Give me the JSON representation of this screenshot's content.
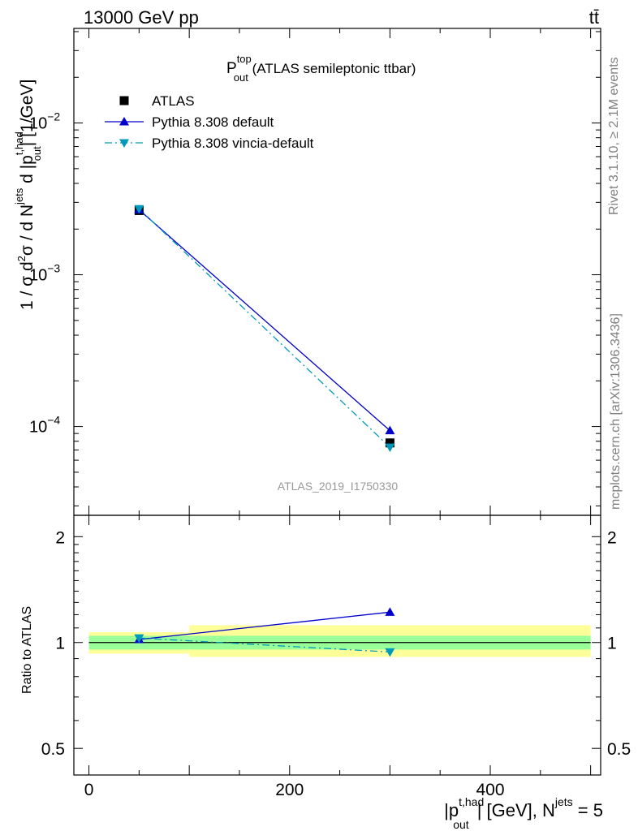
{
  "header": {
    "energy": "13000 GeV pp",
    "process": "tt̄"
  },
  "plot_title": {
    "main": "P",
    "sup": "top",
    "sub": "out",
    "rest": " (ATLAS semileptonic ttbar)"
  },
  "watermark": "ATLAS_2019_I1750330",
  "side_labels": {
    "rivet": "Rivet 3.1.10, ≥ 2.1M events",
    "mcplots": "mcplots.cern.ch [arXiv:1306.3436]"
  },
  "legend": [
    {
      "label": "ATLAS",
      "marker": "square",
      "color": "#000000"
    },
    {
      "label": "Pythia 8.308 default",
      "marker": "triangle-up",
      "color": "#0000cc"
    },
    {
      "label": "Pythia 8.308 vincia-default",
      "marker": "triangle-down",
      "color": "#0099bb"
    }
  ],
  "ylabel_main": {
    "a": "1 / σ d",
    "a_sup": "2",
    "b": "σ / d N",
    "b_sup": "jets",
    "c": " d |p",
    "c_sup": "t,had",
    "c_sub": "out",
    "d": "| [1/GeV]"
  },
  "ylabel_ratio": "Ratio to ATLAS",
  "xlabel": {
    "a": "|p",
    "a_sup": "t,had",
    "a_sub": "out",
    "b": "| [GeV], N",
    "b_sup": "jets",
    "c": " = 5"
  },
  "main_ticks": [
    {
      "base": "10",
      "exp": "−2",
      "value": 0.01
    },
    {
      "base": "10",
      "exp": "−3",
      "value": 0.001
    },
    {
      "base": "10",
      "exp": "−4",
      "value": 0.0001
    }
  ],
  "ratio_ticks": [
    {
      "label": "2",
      "value": 2
    },
    {
      "label": "1",
      "value": 1
    },
    {
      "label": "0.5",
      "value": 0.5
    }
  ],
  "x_ticks": [
    {
      "label": "0",
      "value": 0
    },
    {
      "label": "200",
      "value": 200
    },
    {
      "label": "400",
      "value": 400
    }
  ],
  "chart_data": {
    "type": "scatter",
    "x_scale": "linear",
    "y_scale": "log",
    "xlim": [
      -15,
      510
    ],
    "ylim": [
      2.6e-05,
      0.042
    ],
    "ratio_ylim": [
      0.42,
      2.3
    ],
    "bins": [
      [
        0,
        100
      ],
      [
        100,
        500
      ]
    ],
    "x": [
      50,
      300
    ],
    "series": [
      {
        "name": "ATLAS",
        "values": [
          0.00265,
          7.8e-05
        ],
        "color": "#000000",
        "marker": "square"
      },
      {
        "name": "Pythia 8.308 default",
        "values": [
          0.00268,
          9.4e-05
        ],
        "color": "#0000cc",
        "marker": "triangle-up",
        "line": "solid"
      },
      {
        "name": "Pythia 8.308 vincia-default",
        "values": [
          0.00272,
          7.3e-05
        ],
        "color": "#0099bb",
        "marker": "triangle-down",
        "line": "dashdot"
      }
    ],
    "ratio_series": [
      {
        "name": "Pythia 8.308 default",
        "values": [
          1.02,
          1.22
        ]
      },
      {
        "name": "Pythia 8.308 vincia-default",
        "values": [
          1.03,
          0.94
        ]
      }
    ],
    "ratio_bands": {
      "inner": [
        [
          0.955,
          1.045
        ],
        [
          0.955,
          1.045
        ]
      ],
      "outer": [
        [
          0.93,
          1.07
        ],
        [
          0.91,
          1.12
        ]
      ],
      "inner_color": "#99ff99",
      "outer_color": "#ffff99"
    }
  }
}
